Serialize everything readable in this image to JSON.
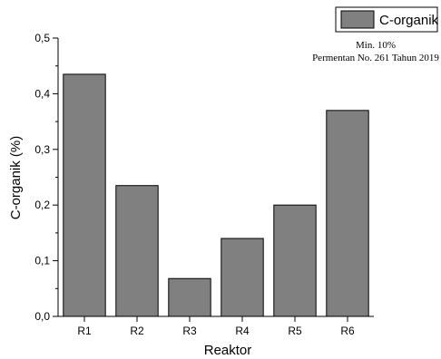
{
  "chart_data": {
    "type": "bar",
    "title": "",
    "xlabel": "Reaktor",
    "ylabel": "C-organik (%)",
    "categories": [
      "R1",
      "R2",
      "R3",
      "R4",
      "R5",
      "R6"
    ],
    "series": [
      {
        "name": "C-organik",
        "values": [
          0.435,
          0.235,
          0.068,
          0.14,
          0.2,
          0.37
        ]
      }
    ],
    "ylim": [
      0,
      0.5
    ],
    "yticks": [
      "0,0",
      "0,1",
      "0,2",
      "0,3",
      "0,4",
      "0,5"
    ],
    "grid": false,
    "legend": "top-right",
    "annotation": [
      "Min. 10%",
      "Permentan No. 261 Tahun 2019"
    ],
    "bar_color": "#808080",
    "bar_edge_color": "#000000"
  }
}
